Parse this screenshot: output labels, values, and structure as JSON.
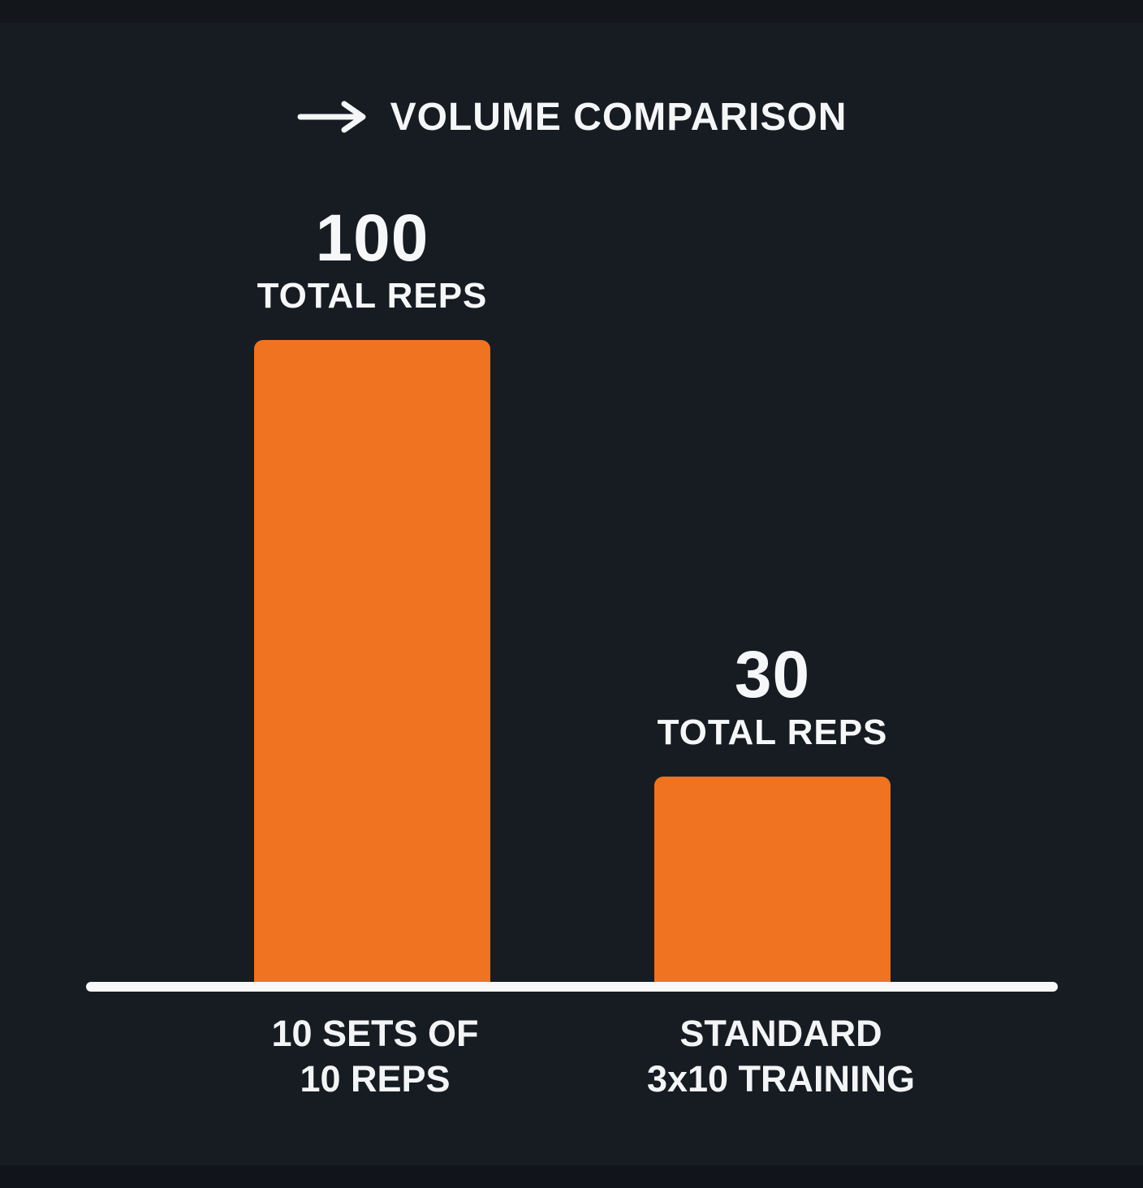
{
  "page": {
    "background": "#171c23",
    "top_band_color": "#13161b",
    "bottom_band_color": "#11141a",
    "text_color": "#f5f6f7"
  },
  "header": {
    "title": "VOLUME COMPARISON",
    "arrow_icon": "right-arrow"
  },
  "chart_data": {
    "type": "bar",
    "title": "VOLUME COMPARISON",
    "categories": [
      "10 SETS OF 10 REPS",
      "STANDARD 3x10 TRAINING"
    ],
    "values": [
      100,
      30
    ],
    "xlabel": "",
    "ylabel": "",
    "ylim": [
      0,
      100
    ],
    "grid": false,
    "legend": false,
    "bar_color": "#ef7320",
    "axis_line_color": "#f8f8f8",
    "bars": [
      {
        "value": "100",
        "caption": "TOTAL REPS",
        "category_line1": "10 SETS OF",
        "category_line2": "10 REPS"
      },
      {
        "value": "30",
        "caption": "TOTAL REPS",
        "category_line1": "STANDARD",
        "category_line2": "3x10 TRAINING"
      }
    ]
  }
}
